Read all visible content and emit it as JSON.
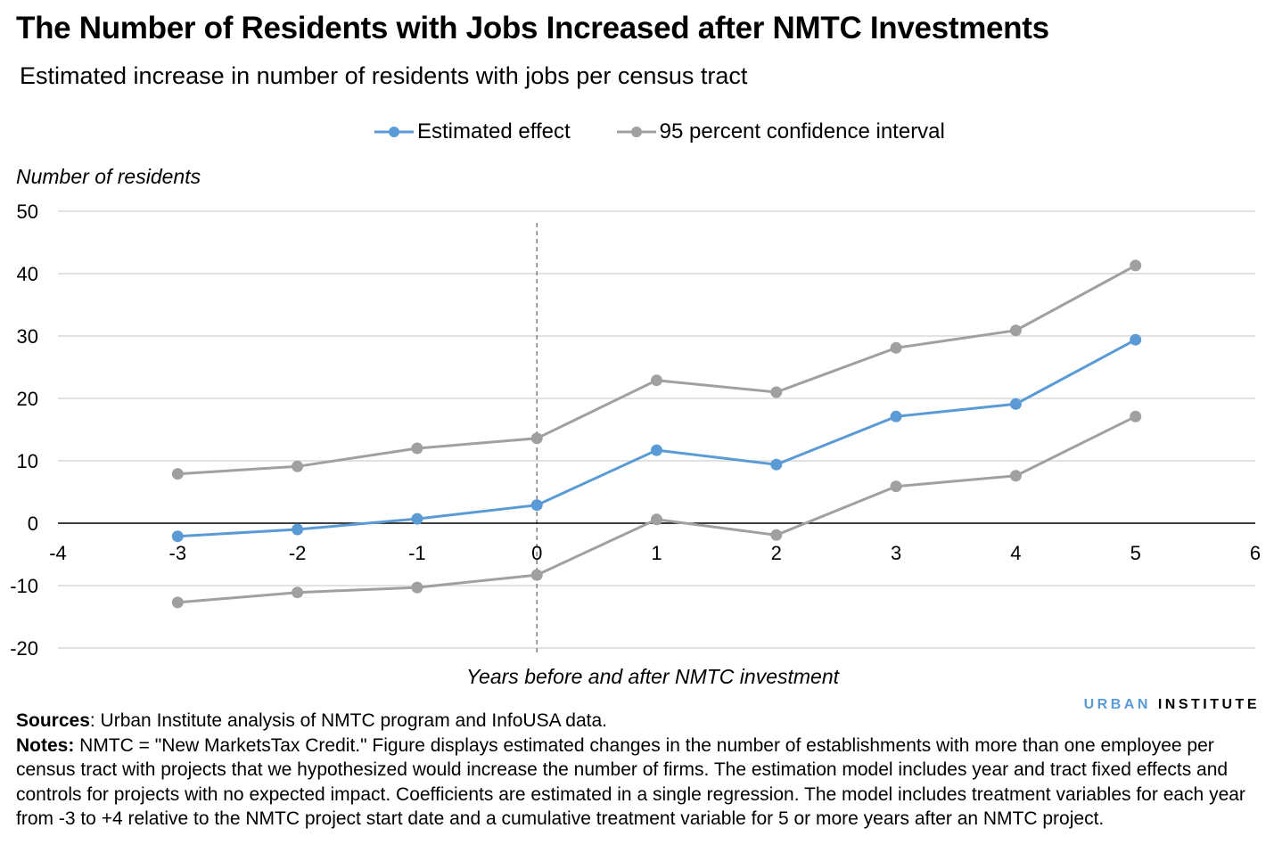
{
  "chart_data": {
    "type": "line",
    "title": "The Number of Residents with Jobs Increased after NMTC Investments",
    "subtitle": "Estimated increase in number of residents with jobs per census tract",
    "xlabel": "Years before and after NMTC investment",
    "ylabel": "Number of residents",
    "xlim": [
      -4,
      6
    ],
    "ylim": [
      -20,
      50
    ],
    "xticks": [
      -4,
      -3,
      -2,
      -1,
      0,
      1,
      2,
      3,
      4,
      5,
      6
    ],
    "yticks": [
      -20,
      -10,
      0,
      10,
      20,
      30,
      40,
      50
    ],
    "grid": "horizontal",
    "legend": "top",
    "reference_line_x": 0,
    "x": [
      -3,
      -2,
      -1,
      0,
      1,
      2,
      3,
      4,
      5
    ],
    "series": [
      {
        "name": "Estimated effect",
        "color": "#5b9bd5",
        "values": [
          -2.1,
          -1.0,
          0.7,
          2.9,
          11.7,
          9.4,
          17.1,
          19.1,
          29.4
        ]
      },
      {
        "name": "95 percent confidence interval",
        "color": "#a0a0a0",
        "values": [
          7.9,
          9.1,
          12.0,
          13.6,
          22.9,
          21.0,
          28.1,
          30.9,
          41.3
        ]
      },
      {
        "name": "95 percent confidence interval",
        "color": "#a0a0a0",
        "values": [
          -12.7,
          -11.1,
          -10.3,
          -8.3,
          0.6,
          -1.9,
          5.9,
          7.6,
          17.1
        ]
      }
    ]
  },
  "logo": {
    "part1": "URBAN",
    "part2": "INSTITUTE"
  },
  "notes": {
    "sources_label": "Sources",
    "sources_text": ": Urban Institute analysis of NMTC program and InfoUSA data.",
    "notes_label": "Notes:",
    "notes_text": " NMTC = \"New MarketsTax Credit.\"  Figure displays estimated changes in the number of establishments with more than one employee per census tract with projects that we hypothesized would increase the number of firms. The estimation model includes year and tract fixed effects and controls for projects with no expected impact. Coefficients are estimated in a single regression. The model includes treatment variables for each year from -3 to +4 relative to the NMTC project start date and a cumulative treatment variable for 5 or more years after an NMTC project."
  }
}
